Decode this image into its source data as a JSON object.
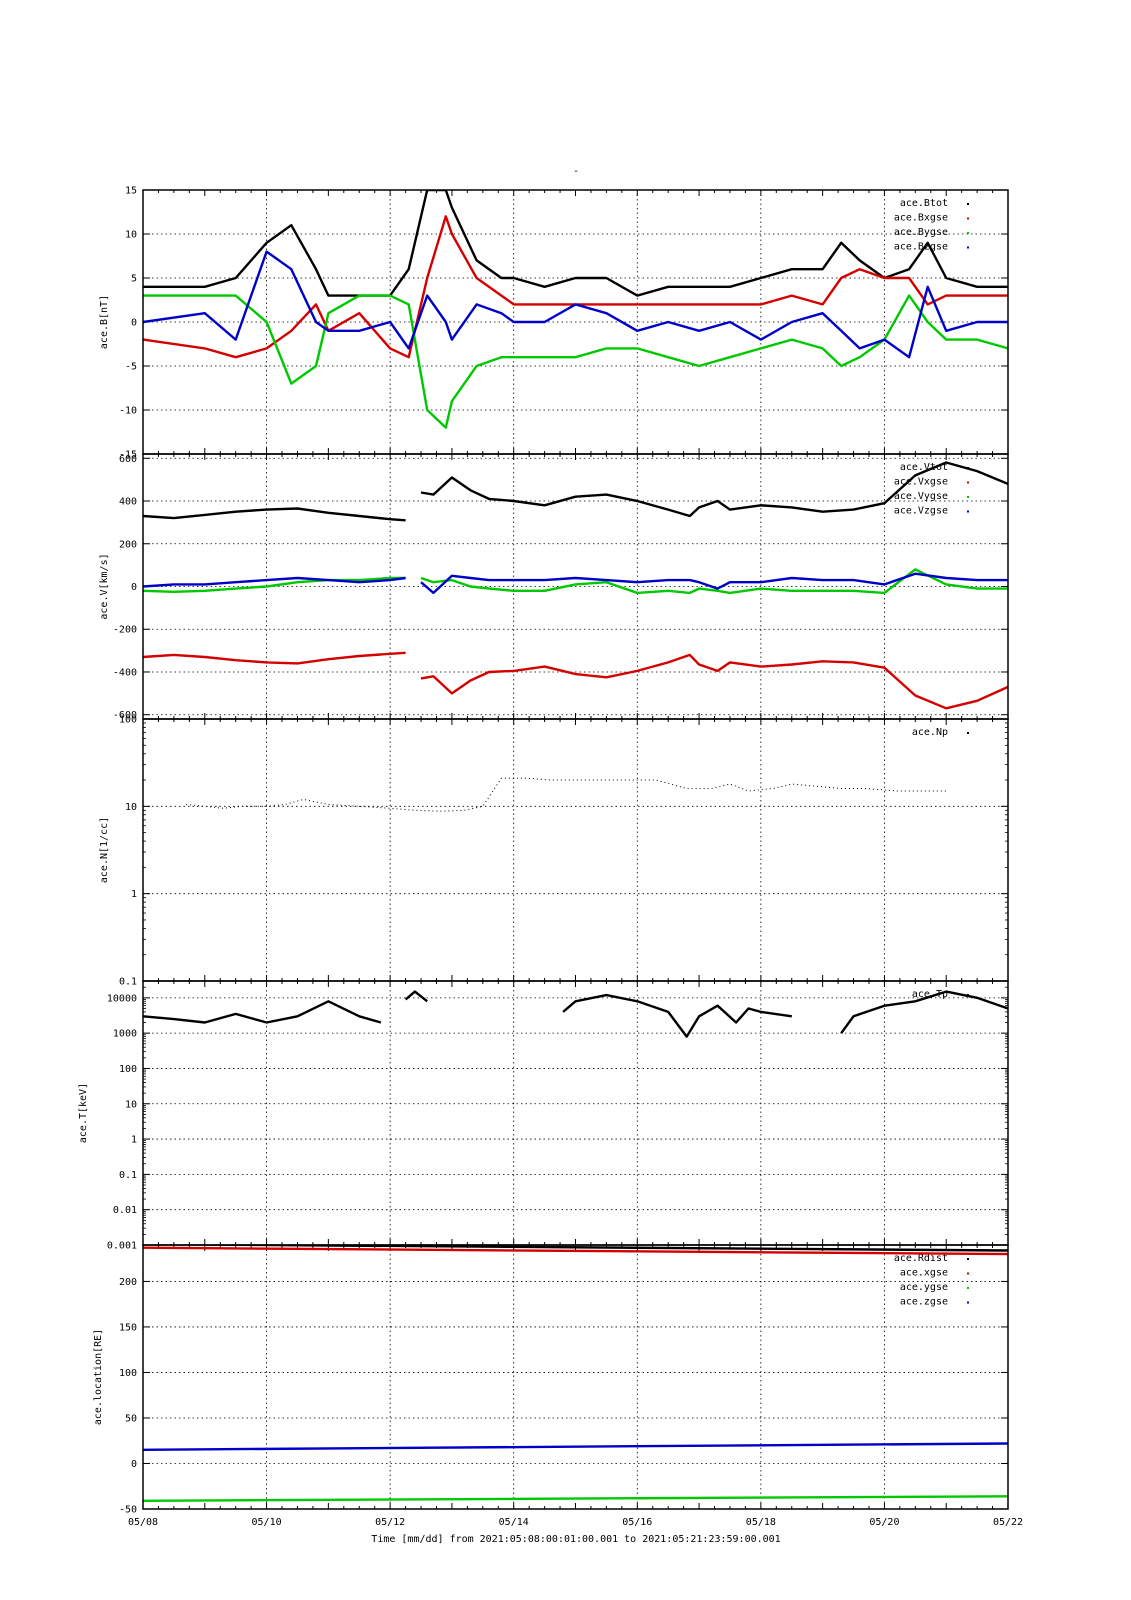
{
  "title": "-",
  "xlabel": "Time [mm/dd]  from 2021:05:08:00:01:00.001  to  2021:05:21:23:59:00.001",
  "colors": {
    "black": "#000000",
    "red": "#d40000",
    "green": "#00c800",
    "blue": "#0000c8"
  },
  "chart_data": [
    {
      "type": "scatter",
      "ylabel": "ace.B[nT]",
      "ylim": [
        -15,
        15
      ],
      "yscale": "linear",
      "yticks": [
        -15,
        -10,
        -5,
        0,
        5,
        10,
        15
      ],
      "x": [
        8,
        9,
        9.5,
        10,
        10.4,
        10.8,
        11,
        11.5,
        12,
        12.3,
        12.6,
        12.9,
        13,
        13.4,
        13.8,
        14,
        14.5,
        15,
        15.5,
        16,
        16.5,
        17,
        17.5,
        18,
        18.5,
        19,
        19.3,
        19.6,
        20,
        20.4,
        20.7,
        21,
        21.5,
        22
      ],
      "series": [
        {
          "name": "ace.Btot",
          "color": "black",
          "values": [
            4,
            4,
            5,
            9,
            11,
            6,
            3,
            3,
            3,
            6,
            15,
            15,
            13,
            7,
            5,
            5,
            4,
            5,
            5,
            3,
            4,
            4,
            4,
            5,
            6,
            6,
            9,
            7,
            5,
            6,
            9,
            5,
            4,
            4
          ]
        },
        {
          "name": "ace.Bxgse",
          "color": "red",
          "values": [
            -2,
            -3,
            -4,
            -3,
            -1,
            2,
            -1,
            1,
            -3,
            -4,
            5,
            12,
            10,
            5,
            3,
            2,
            2,
            2,
            2,
            2,
            2,
            2,
            2,
            2,
            3,
            2,
            5,
            6,
            5,
            5,
            2,
            3,
            3,
            3
          ]
        },
        {
          "name": "ace.Bygse",
          "color": "green",
          "values": [
            3,
            3,
            3,
            0,
            -7,
            -5,
            1,
            3,
            3,
            2,
            -10,
            -12,
            -9,
            -5,
            -4,
            -4,
            -4,
            -4,
            -3,
            -3,
            -4,
            -5,
            -4,
            -3,
            -2,
            -3,
            -5,
            -4,
            -2,
            3,
            0,
            -2,
            -2,
            -3
          ]
        },
        {
          "name": "ace.Bzgse",
          "color": "blue",
          "values": [
            0,
            1,
            -2,
            8,
            6,
            0,
            -1,
            -1,
            0,
            -3,
            3,
            0,
            -2,
            2,
            1,
            0,
            0,
            2,
            1,
            -1,
            0,
            -1,
            0,
            -2,
            0,
            1,
            -1,
            -3,
            -2,
            -4,
            4,
            -1,
            0,
            0
          ]
        }
      ]
    },
    {
      "type": "scatter",
      "ylabel": "ace.V[km/s]",
      "ylim": [
        -620,
        620
      ],
      "yscale": "linear",
      "yticks": [
        -600,
        -400,
        -200,
        0,
        200,
        400,
        600
      ],
      "x": [
        8,
        8.5,
        9,
        9.5,
        10,
        10.5,
        11,
        11.5,
        12,
        12.25,
        12.3,
        12.5,
        12.7,
        13,
        13.3,
        13.6,
        14,
        14.5,
        15,
        15.5,
        16,
        16.5,
        16.85,
        17,
        17.3,
        17.5,
        18,
        18.5,
        19,
        19.5,
        20,
        20.5,
        21,
        21.5,
        22
      ],
      "series": [
        {
          "name": "ace.Vtot",
          "color": "black",
          "values": [
            330,
            320,
            335,
            350,
            360,
            365,
            345,
            330,
            315,
            310,
            null,
            440,
            430,
            510,
            450,
            410,
            400,
            380,
            420,
            430,
            400,
            360,
            330,
            370,
            400,
            360,
            380,
            370,
            350,
            360,
            390,
            520,
            580,
            540,
            480
          ]
        },
        {
          "name": "ace.Vxgse",
          "color": "red",
          "values": [
            -330,
            -320,
            -330,
            -345,
            -355,
            -360,
            -340,
            -325,
            -315,
            -310,
            null,
            -430,
            -420,
            -500,
            -440,
            -400,
            -395,
            -375,
            -410,
            -425,
            -395,
            -355,
            -320,
            -365,
            -395,
            -355,
            -375,
            -365,
            -350,
            -355,
            -380,
            -510,
            -570,
            -535,
            -470
          ]
        },
        {
          "name": "ace.Vygse",
          "color": "green",
          "values": [
            -20,
            -25,
            -20,
            -10,
            0,
            20,
            30,
            30,
            40,
            40,
            null,
            40,
            20,
            30,
            0,
            -10,
            -20,
            -20,
            10,
            20,
            -30,
            -20,
            -30,
            -10,
            -20,
            -30,
            -10,
            -20,
            -20,
            -20,
            -30,
            80,
            10,
            -10,
            -10
          ]
        },
        {
          "name": "ace.Vzgse",
          "color": "blue",
          "values": [
            0,
            10,
            10,
            20,
            30,
            40,
            30,
            20,
            30,
            40,
            null,
            20,
            -30,
            50,
            40,
            30,
            30,
            30,
            40,
            30,
            20,
            30,
            30,
            20,
            -10,
            20,
            20,
            40,
            30,
            30,
            10,
            60,
            40,
            30,
            30
          ]
        }
      ]
    },
    {
      "type": "scatter",
      "ylabel": "ace.N[1/cc]",
      "ylim": [
        0.1,
        100
      ],
      "yscale": "log",
      "yticks": [
        0.1,
        1,
        10,
        100
      ],
      "x": [
        8.7,
        9,
        9.3,
        9.6,
        10,
        10.3,
        10.6,
        11,
        11.5,
        12,
        12.4,
        12.8,
        13.2,
        13.5,
        13.8,
        14.2,
        14.6,
        15,
        15.5,
        16,
        16.3,
        16.8,
        17.2,
        17.5,
        17.8,
        18.2,
        18.5,
        19.3,
        19.7,
        20.2,
        20.6,
        21
      ],
      "series": [
        {
          "name": "ace.Np",
          "color": "black",
          "values": [
            10.5,
            10,
            9.5,
            10,
            10,
            10.5,
            12,
            10.5,
            10,
            9.5,
            9,
            8.8,
            9,
            10,
            21,
            21,
            20,
            20,
            20,
            20,
            20,
            16,
            16,
            18,
            15,
            16,
            18,
            16,
            16,
            15,
            15,
            15
          ]
        }
      ]
    },
    {
      "type": "scatter",
      "ylabel": "ace.T[keV]",
      "ylim": [
        0.001,
        30000
      ],
      "yscale": "log",
      "yticks": [
        0.001,
        0.01,
        0.1,
        1,
        10,
        100,
        1000,
        10000
      ],
      "x": [
        8,
        8.5,
        9,
        9.5,
        10,
        10.5,
        11,
        11.5,
        11.85,
        12,
        12.25,
        12.4,
        12.6,
        13,
        13.5,
        14,
        14.5,
        14.8,
        15,
        15.5,
        16,
        16.5,
        16.8,
        17,
        17.3,
        17.6,
        17.8,
        18,
        18.5,
        19,
        19.3,
        19.5,
        20,
        20.5,
        21,
        21.5,
        22
      ],
      "series": [
        {
          "name": "ace.Tp",
          "color": "black",
          "values": [
            3000,
            2500,
            2000,
            3500,
            2000,
            3000,
            8000,
            3000,
            2000,
            null,
            9000,
            15000,
            8000,
            null,
            null,
            null,
            null,
            4000,
            8000,
            12000,
            8000,
            4000,
            800,
            3000,
            6000,
            2000,
            5000,
            4000,
            3000,
            null,
            1000,
            3000,
            6000,
            8000,
            15000,
            10000,
            5000
          ]
        }
      ]
    },
    {
      "type": "scatter",
      "ylabel": "ace.location[RE]",
      "ylim": [
        -50,
        240
      ],
      "yscale": "linear",
      "yticks": [
        -50,
        0,
        50,
        100,
        150,
        200
      ],
      "x": [
        8,
        22
      ],
      "series": [
        {
          "name": "ace.Rdist",
          "color": "black",
          "values": [
            241,
            234
          ]
        },
        {
          "name": "ace.xgse",
          "color": "red",
          "values": [
            237,
            230
          ]
        },
        {
          "name": "ace.ygse",
          "color": "green",
          "values": [
            -41,
            -36
          ]
        },
        {
          "name": "ace.zgse",
          "color": "blue",
          "values": [
            15,
            22
          ]
        }
      ]
    }
  ],
  "xaxis": {
    "range": [
      8,
      22
    ],
    "ticks": [
      8,
      10,
      12,
      14,
      16,
      18,
      20,
      22
    ],
    "tick_labels": [
      "05/08",
      "05/10",
      "05/12",
      "05/14",
      "05/16",
      "05/18",
      "05/20",
      "05/22"
    ]
  }
}
